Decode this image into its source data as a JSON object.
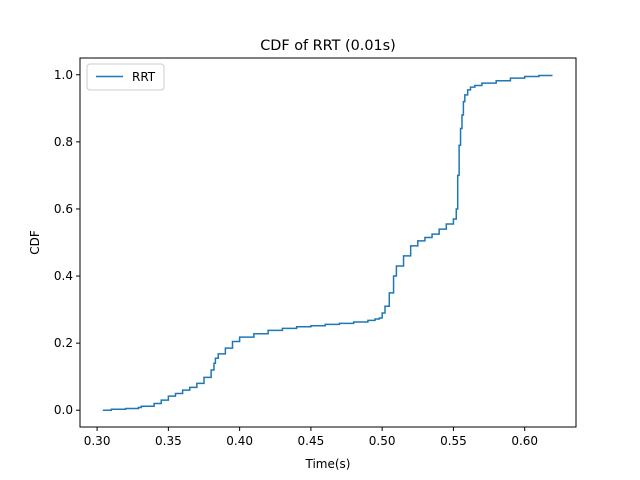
{
  "chart_data": {
    "type": "line",
    "title": "CDF of RRT (0.01s)",
    "xlabel": "Time(s)",
    "ylabel": "CDF",
    "xlim": [
      0.288,
      0.636
    ],
    "ylim": [
      -0.05,
      1.05
    ],
    "x_ticks": [
      0.3,
      0.35,
      0.4,
      0.45,
      0.5,
      0.55,
      0.6
    ],
    "x_tick_labels": [
      "0.30",
      "0.35",
      "0.40",
      "0.45",
      "0.50",
      "0.55",
      "0.60"
    ],
    "y_ticks": [
      0.0,
      0.2,
      0.4,
      0.6,
      0.8,
      1.0
    ],
    "y_tick_labels": [
      "0.0",
      "0.2",
      "0.4",
      "0.6",
      "0.8",
      "1.0"
    ],
    "grid": false,
    "legend_position": "top-left",
    "series": [
      {
        "name": "RRT",
        "color": "#1f77b4",
        "step": true,
        "x": [
          0.304,
          0.31,
          0.32,
          0.329,
          0.331,
          0.34,
          0.345,
          0.35,
          0.355,
          0.36,
          0.365,
          0.37,
          0.375,
          0.38,
          0.382,
          0.383,
          0.385,
          0.39,
          0.395,
          0.4,
          0.41,
          0.42,
          0.43,
          0.44,
          0.45,
          0.46,
          0.47,
          0.48,
          0.49,
          0.495,
          0.498,
          0.5,
          0.502,
          0.505,
          0.508,
          0.51,
          0.515,
          0.52,
          0.525,
          0.53,
          0.535,
          0.54,
          0.545,
          0.55,
          0.552,
          0.553,
          0.554,
          0.555,
          0.556,
          0.557,
          0.558,
          0.56,
          0.562,
          0.565,
          0.57,
          0.58,
          0.59,
          0.6,
          0.61,
          0.619
        ],
        "y": [
          0.0,
          0.003,
          0.005,
          0.008,
          0.012,
          0.02,
          0.03,
          0.042,
          0.05,
          0.06,
          0.068,
          0.08,
          0.098,
          0.12,
          0.14,
          0.155,
          0.168,
          0.185,
          0.205,
          0.218,
          0.228,
          0.238,
          0.244,
          0.249,
          0.252,
          0.256,
          0.259,
          0.263,
          0.268,
          0.272,
          0.275,
          0.29,
          0.31,
          0.35,
          0.4,
          0.43,
          0.46,
          0.49,
          0.505,
          0.515,
          0.525,
          0.54,
          0.555,
          0.57,
          0.6,
          0.7,
          0.79,
          0.84,
          0.88,
          0.92,
          0.94,
          0.955,
          0.963,
          0.968,
          0.975,
          0.982,
          0.99,
          0.995,
          0.998,
          1.0
        ]
      }
    ]
  }
}
